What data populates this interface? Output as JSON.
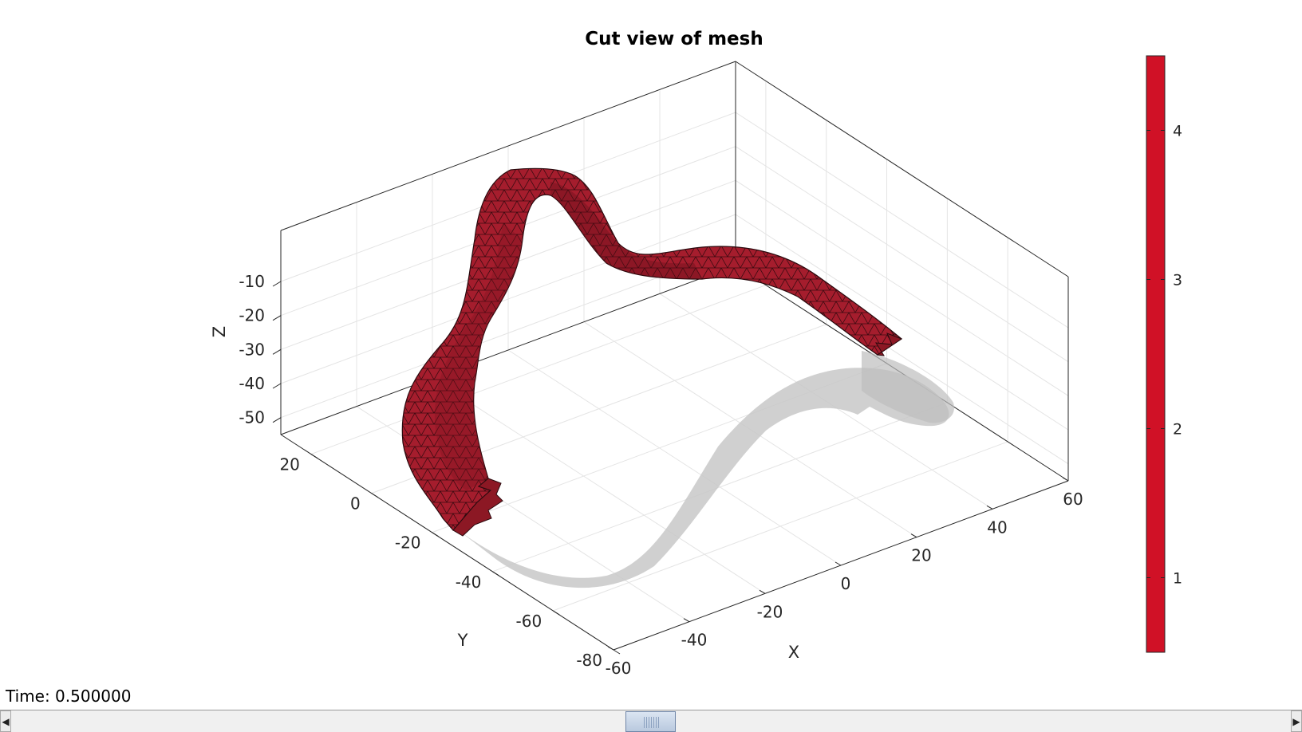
{
  "title": "Cut view of mesh",
  "time_label": "Time: 0.500000",
  "colors": {
    "mesh": "#a51d2d",
    "shadow": "#c8c8c8",
    "colorbar": "#d01126"
  },
  "chart_data": {
    "type": "surface-3d",
    "title": "Cut view of mesh",
    "xlabel": "X",
    "ylabel": "Y",
    "zlabel": "Z",
    "x_ticks": [
      -60,
      -40,
      -20,
      0,
      20,
      40,
      60
    ],
    "y_ticks": [
      -80,
      -60,
      -40,
      -20,
      0,
      20
    ],
    "z_ticks": [
      -50,
      -40,
      -30,
      -20,
      -10
    ],
    "xlim": [
      -60,
      60
    ],
    "ylim": [
      -80,
      30
    ],
    "zlim": [
      -55,
      5
    ],
    "grid": true,
    "colorbar": {
      "ticks": [
        1,
        2,
        3,
        4
      ],
      "limits": [
        0.5,
        4.5
      ],
      "color": "#d01126"
    },
    "series": [
      {
        "name": "",
        "type": "triangulated-surface",
        "color": "#a51d2d"
      },
      {
        "name": "",
        "type": "transparent-surface",
        "color": "#c8c8c8"
      }
    ]
  },
  "slider": {
    "value": 0.5,
    "left_arrow": "◀",
    "right_arrow": "▶"
  }
}
